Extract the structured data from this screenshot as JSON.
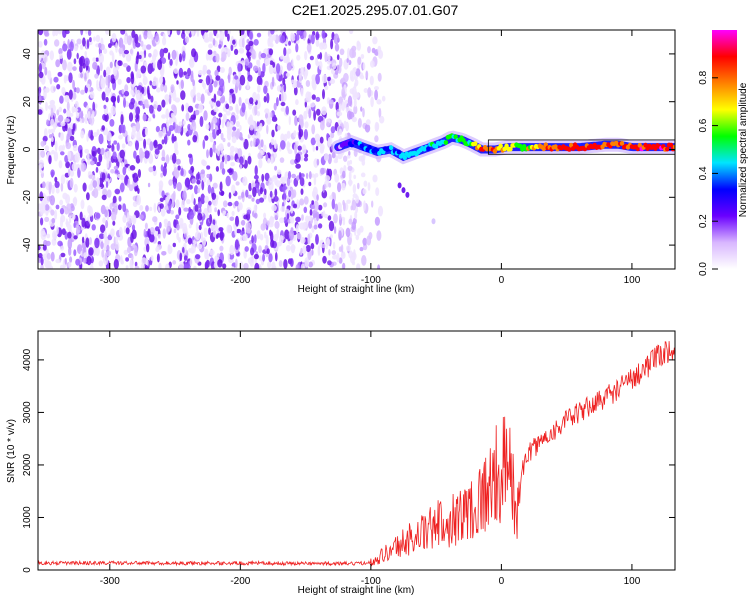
{
  "chart_data": [
    {
      "type": "heatmap",
      "title": "C2E1.2025.295.07.01.G07",
      "xlabel": "Height of straight line (km)",
      "ylabel": "Frequency (Hz)",
      "xlim": [
        -355,
        133
      ],
      "ylim": [
        -50,
        50
      ],
      "xticks": [
        -300,
        -200,
        -100,
        0,
        100
      ],
      "yticks": [
        -40,
        -20,
        0,
        20,
        40
      ],
      "noise_region_x": [
        -355,
        -90
      ],
      "signal_trace": {
        "x": [
          -125,
          -115,
          -105,
          -95,
          -85,
          -75,
          -65,
          -55,
          -45,
          -38,
          -30,
          -22,
          -15,
          -5,
          5,
          15,
          25,
          40,
          60,
          80,
          90,
          100,
          110,
          120,
          133
        ],
        "frequency": [
          1,
          3,
          1,
          -1,
          0,
          -3,
          -1,
          1,
          3,
          5,
          4,
          2,
          0,
          0,
          1,
          1,
          1,
          1,
          1,
          2,
          2,
          1,
          1,
          1,
          1
        ],
        "amplitude": [
          0.2,
          0.3,
          0.35,
          0.4,
          0.4,
          0.45,
          0.45,
          0.45,
          0.5,
          0.5,
          0.45,
          0.6,
          0.85,
          0.8,
          0.65,
          0.6,
          0.7,
          0.85,
          0.9,
          0.85,
          0.8,
          0.85,
          0.9,
          0.9,
          0.9
        ]
      },
      "colorbar": {
        "label": "Normalized spectral amplitude",
        "range": [
          0.0,
          1.0
        ],
        "ticks": [
          0.0,
          0.2,
          0.4,
          0.6,
          0.8
        ],
        "tick_labels": [
          "0.0",
          "0.2",
          "0.4",
          "0.6",
          "0.8"
        ],
        "colors": [
          "#ffffff",
          "#d8b6ff",
          "#6a00ff",
          "#0000ff",
          "#00e5ff",
          "#00ff00",
          "#ffff00",
          "#ff8000",
          "#ff0000",
          "#ff00ff"
        ]
      }
    },
    {
      "type": "line",
      "title": "",
      "xlabel": "Height of straight line (km)",
      "ylabel": "SNR (10 * v/v)",
      "xlim": [
        -355,
        133
      ],
      "ylim": [
        0,
        4550
      ],
      "xticks": [
        -300,
        -200,
        -100,
        0,
        100
      ],
      "yticks": [
        0,
        1000,
        2000,
        3000,
        4000
      ],
      "color": "#ee2020",
      "series": [
        {
          "name": "SNR",
          "x": [
            -355,
            -300,
            -250,
            -200,
            -150,
            -110,
            -100,
            -90,
            -80,
            -70,
            -60,
            -50,
            -40,
            -30,
            -20,
            -10,
            -5,
            0,
            5,
            10,
            12,
            15,
            20,
            30,
            40,
            50,
            60,
            70,
            80,
            90,
            100,
            110,
            120,
            133
          ],
          "values": [
            130,
            135,
            130,
            130,
            125,
            120,
            150,
            300,
            450,
            600,
            700,
            850,
            950,
            1050,
            1250,
            1550,
            1750,
            1900,
            1950,
            1400,
            1100,
            1800,
            2200,
            2450,
            2650,
            2850,
            3000,
            3150,
            3300,
            3450,
            3650,
            3850,
            4050,
            4250
          ]
        }
      ]
    }
  ]
}
